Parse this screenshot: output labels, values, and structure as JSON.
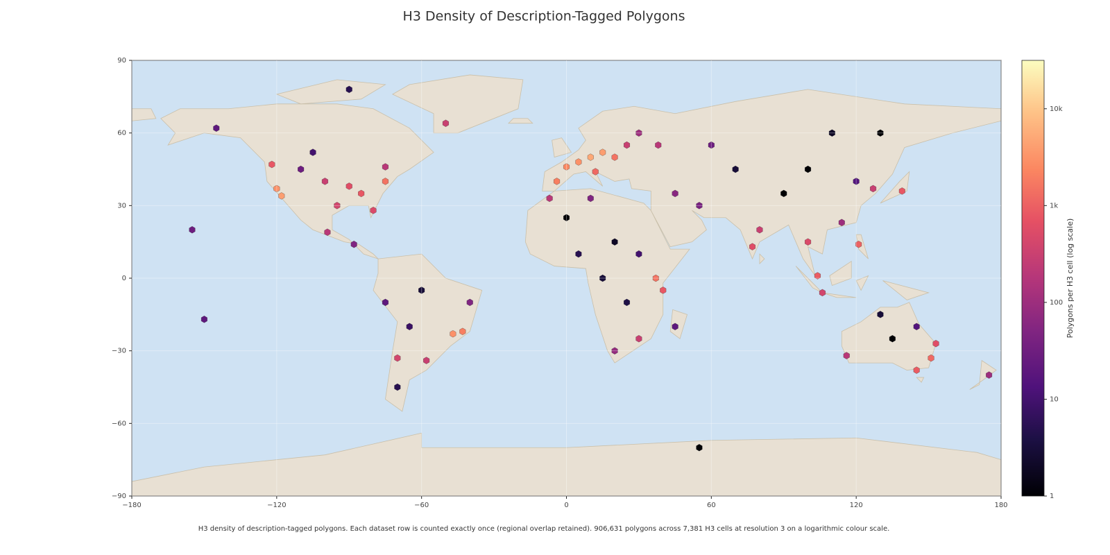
{
  "chart_data": {
    "type": "hexmap",
    "title": "H3 Density of Description-Tagged Polygons",
    "caption": "H3 density of description-tagged polygons. Each dataset row is counted exactly once (regional overlap retained). 906,631 polygons across 7,381 H3 cells at resolution 3 on a logarithmic colour scale.",
    "xlim": [
      -180,
      180
    ],
    "ylim": [
      -90,
      90
    ],
    "xticks": [
      {
        "value": -180,
        "label": "−180"
      },
      {
        "value": -120,
        "label": "−120"
      },
      {
        "value": -60,
        "label": "−60"
      },
      0,
      60,
      120,
      180
    ],
    "yticks": [
      {
        "value": -90,
        "label": "−90"
      },
      {
        "value": -60,
        "label": "−60"
      },
      {
        "value": -30,
        "label": "−30"
      },
      0,
      30,
      60,
      90
    ],
    "colorbar": {
      "label": "Polygons per H3 cell (log scale)",
      "scale": "log",
      "lim": [
        1,
        31623
      ],
      "ticks": [
        1,
        10,
        100,
        {
          "value": 1000,
          "label": "1k"
        },
        {
          "value": 10000,
          "label": "10k"
        }
      ]
    },
    "cells": {
      "lon": [
        10,
        5,
        0,
        15,
        20,
        -4,
        12,
        25,
        30,
        38,
        -120,
        -118,
        -100,
        -90,
        -85,
        -75,
        -80,
        -95,
        -122,
        -110,
        -105,
        -75,
        -99,
        -88,
        -47,
        -43,
        -58,
        -70,
        -75,
        -60,
        -40,
        -65,
        -70,
        37,
        40,
        30,
        20,
        5,
        20,
        0,
        15,
        30,
        10,
        -7,
        25,
        45,
        80,
        77,
        100,
        104,
        106,
        121,
        139,
        127,
        114,
        90,
        100,
        60,
        70,
        110,
        130,
        55,
        45,
        120,
        151,
        145,
        153,
        116,
        135,
        130,
        145,
        175,
        -155,
        -50,
        -90,
        55,
        -150,
        -145
      ],
      "lat": [
        50,
        48,
        46,
        52,
        50,
        40,
        44,
        55,
        60,
        55,
        37,
        34,
        40,
        38,
        35,
        40,
        28,
        30,
        47,
        45,
        52,
        46,
        19,
        14,
        -23,
        -22,
        -34,
        -33,
        -10,
        -5,
        -10,
        -20,
        -45,
        0,
        -5,
        -25,
        -30,
        10,
        15,
        25,
        0,
        10,
        33,
        33,
        -10,
        -20,
        20,
        13,
        15,
        1,
        -6,
        14,
        36,
        37,
        23,
        35,
        45,
        55,
        45,
        60,
        60,
        30,
        35,
        40,
        -33,
        -38,
        -27,
        -32,
        -25,
        -15,
        -20,
        -40,
        20,
        64,
        78,
        -70,
        -17,
        62
      ],
      "count": [
        5000,
        3000,
        2500,
        4000,
        1500,
        2000,
        1200,
        300,
        100,
        200,
        3000,
        4000,
        300,
        600,
        800,
        1500,
        500,
        400,
        800,
        30,
        10,
        200,
        200,
        50,
        3000,
        2000,
        300,
        400,
        20,
        3,
        50,
        8,
        5,
        1500,
        800,
        300,
        80,
        5,
        2,
        1,
        3,
        10,
        50,
        200,
        4,
        20,
        300,
        600,
        500,
        900,
        400,
        1000,
        800,
        300,
        100,
        1,
        1,
        30,
        3,
        2,
        1,
        40,
        60,
        15,
        1200,
        900,
        600,
        200,
        1,
        3,
        15,
        100,
        30,
        300,
        5,
        1,
        20,
        20
      ]
    }
  }
}
